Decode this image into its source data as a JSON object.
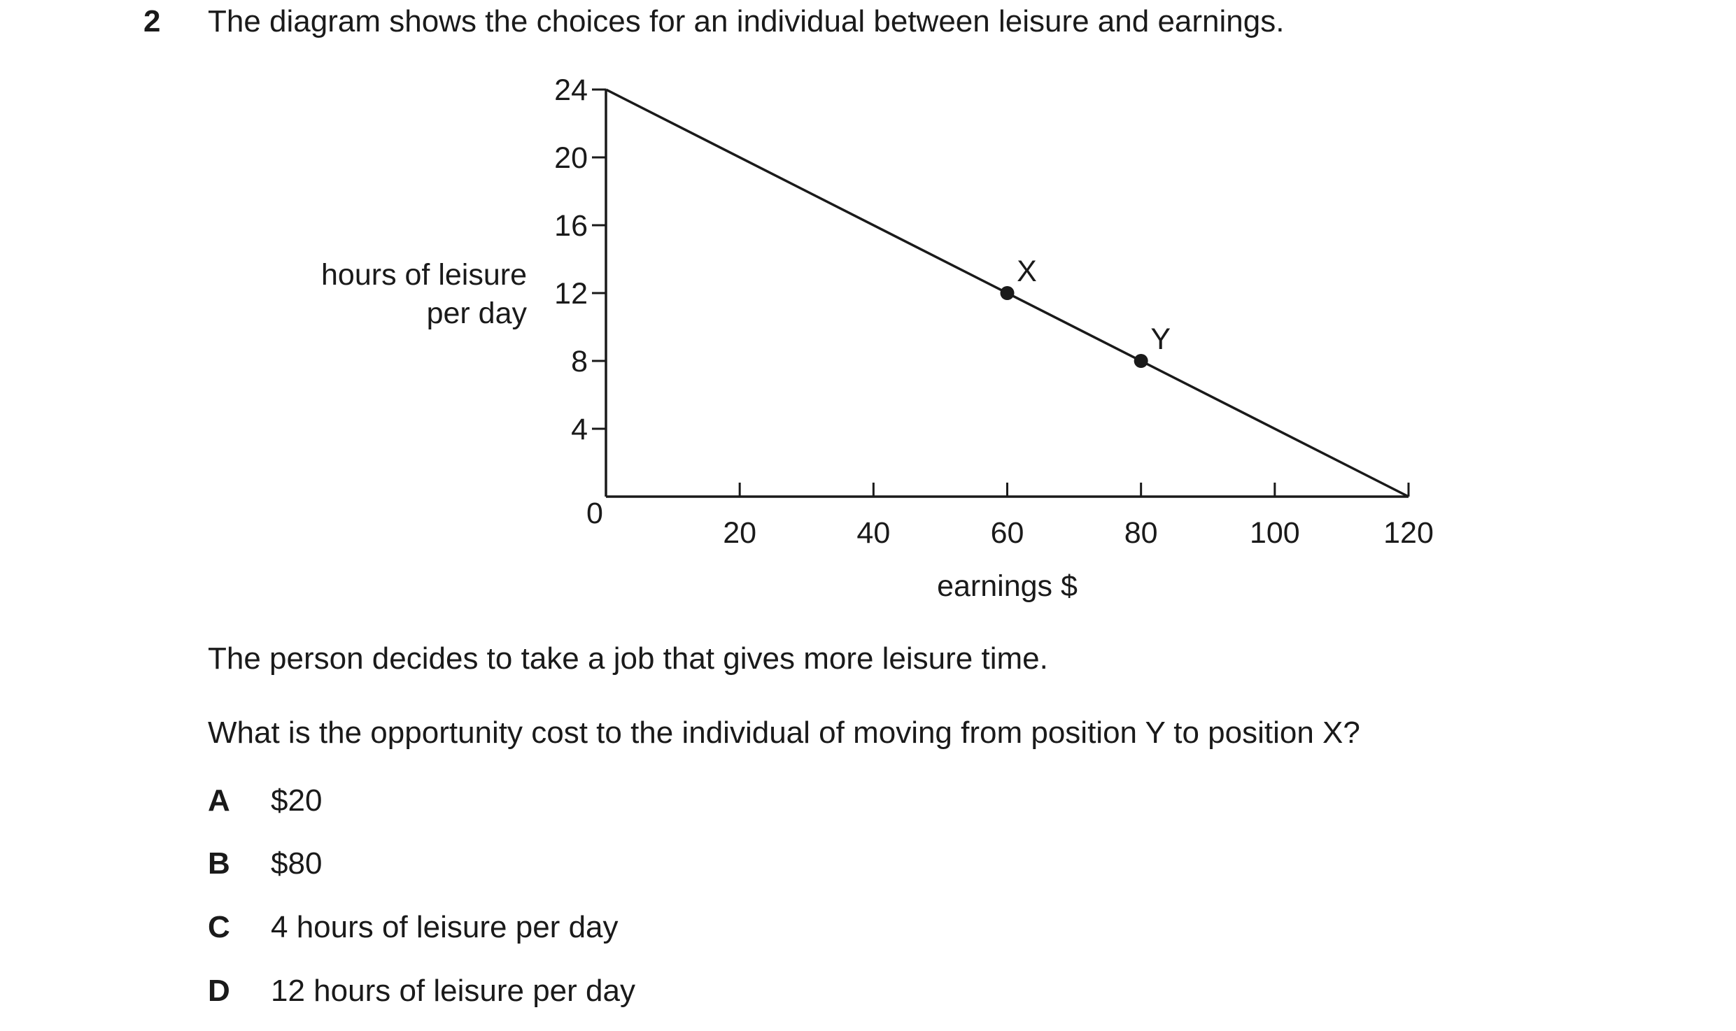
{
  "question": {
    "number": "2",
    "stem": "The diagram shows the choices for an individual between leisure and earnings.",
    "statement": "The person decides to take a job that gives more leisure time.",
    "prompt": "What is the opportunity cost to the individual of moving from position Y to position X?",
    "options": [
      {
        "letter": "A",
        "text": "$20"
      },
      {
        "letter": "B",
        "text": "$80"
      },
      {
        "letter": "C",
        "text": "4 hours of leisure per day"
      },
      {
        "letter": "D",
        "text": "12 hours of leisure per day"
      }
    ]
  },
  "chart_data": {
    "type": "line",
    "xlabel": "earnings $",
    "ylabel_lines": [
      "hours of leisure",
      "per day"
    ],
    "xlim": [
      0,
      120
    ],
    "ylim": [
      0,
      24
    ],
    "x_ticks": [
      20,
      40,
      60,
      80,
      100,
      120
    ],
    "y_ticks": [
      4,
      8,
      12,
      16,
      20,
      24
    ],
    "origin_label": "0",
    "grid": false,
    "series": [
      {
        "x": [
          0,
          120
        ],
        "y": [
          24,
          0
        ]
      }
    ],
    "points": [
      {
        "label": "X",
        "x": 60,
        "y": 12
      },
      {
        "label": "Y",
        "x": 80,
        "y": 8
      }
    ]
  }
}
